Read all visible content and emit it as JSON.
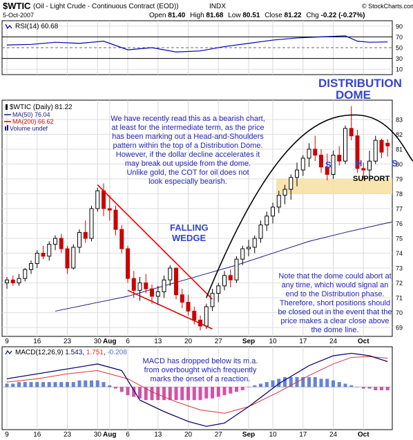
{
  "header": {
    "symbol": "$WTIC",
    "description": "(Oil - Light Crude - Continuous Contract (EOD))",
    "exchange": "INDX",
    "date": "5-Oct-2007",
    "open_label": "Open",
    "open": "81.40",
    "high_label": "High",
    "high": "81.68",
    "low_label": "Low",
    "low": "80.51",
    "close_label": "Close",
    "close": "81.22",
    "chg_label": "Chg",
    "chg": "-0.22 (-0.27%)",
    "brand": "© StockCharts.com"
  },
  "rsi_panel": {
    "legend": "RSI(14) 60.68",
    "ticks": [
      90,
      70,
      50,
      30,
      10
    ],
    "ref_levels": [
      70,
      30
    ],
    "mid_level": 50,
    "ylim": [
      0,
      100
    ],
    "color": "#0000aa"
  },
  "price_panel": {
    "legend_title": "$WTIC (Daily) 81.22",
    "legend_ma50": "MA(50) 76.04",
    "legend_ma200": "MA(200) 66.62",
    "legend_volume": "Volume undef",
    "ticks": [
      83,
      82,
      81,
      80,
      79,
      78,
      77,
      76,
      75,
      74,
      73,
      72,
      71,
      70,
      69
    ],
    "ylim": [
      68.4,
      84.3
    ],
    "up_color": "#ffffff",
    "down_color": "#cc0000",
    "ma50_color": "#1a1a80",
    "ma200_color": "#cc0000"
  },
  "macd_panel": {
    "legend_name": "MACD(12,26,9)",
    "legend_macd": "1.543",
    "legend_signal": "1.751",
    "legend_hist": "-0.208",
    "ylim": [
      -2.6,
      2.45
    ],
    "macd_color": "#0a0a6e",
    "signal_color": "#e03030",
    "hist_up_color": "#4a6fd0",
    "hist_down_color": "#cc3399"
  },
  "x_axis": {
    "ticks": [
      {
        "i": 0,
        "label": "9",
        "bold": false
      },
      {
        "i": 5,
        "label": "16",
        "bold": false
      },
      {
        "i": 10,
        "label": "23",
        "bold": false
      },
      {
        "i": 15,
        "label": "30",
        "bold": false
      },
      {
        "i": 17,
        "label": "Aug",
        "bold": true
      },
      {
        "i": 20,
        "label": "6",
        "bold": false
      },
      {
        "i": 25,
        "label": "13",
        "bold": false
      },
      {
        "i": 30,
        "label": "20",
        "bold": false
      },
      {
        "i": 35,
        "label": "27",
        "bold": false
      },
      {
        "i": 40,
        "label": "Sep",
        "bold": true
      },
      {
        "i": 44,
        "label": "10",
        "bold": false
      },
      {
        "i": 49,
        "label": "17",
        "bold": false
      },
      {
        "i": 54,
        "label": "24",
        "bold": false
      },
      {
        "i": 59,
        "label": "Oct",
        "bold": true
      }
    ]
  },
  "annotations": {
    "distribution_line1": "DISTRIBUTION",
    "distribution_line2": "DOME",
    "bearish_text": [
      "We have recently read this as a bearish chart,",
      "at least for the intermediate term, as the price",
      "has been marking out a Head-and-Shoulders",
      "pattern within the top of a Distribution Dome.",
      "However, if the dollar decline accelerates it",
      "may break out upside from the dome.",
      "Unlike gold, the COT for oil does not",
      "look especially bearish."
    ],
    "falling_line1": "FALLING",
    "falling_line2": "WEDGE",
    "s_left": "S",
    "h": "H",
    "s_right": "S",
    "support": "SUPPORT",
    "dome_note": [
      "Note that the dome could abort at",
      "any time, which would signal an",
      "end to the Distribution phase.",
      "Therefore, short positions should",
      "be closed out in the event that the",
      "price makes a clear close above",
      "the dome line."
    ],
    "macd_note": [
      "MACD has dropped below its m.a.",
      "from overbought which frequently",
      "marks the onset of a reaction."
    ],
    "text_color": "#2222bb",
    "title_color": "#3344cc",
    "support_zone_color": "#f7dfa0",
    "wedge_color": "#dd0000",
    "dome_color": "#000000"
  },
  "chart_data": [
    {
      "type": "line",
      "name_in_legend": "RSI(14)",
      "x_index": [
        0,
        4,
        8,
        12,
        16,
        20,
        24,
        28,
        32,
        36,
        40,
        44,
        48,
        52,
        56,
        58,
        60,
        63
      ],
      "values": [
        55,
        56,
        60,
        58,
        62,
        46,
        50,
        42,
        44,
        52,
        58,
        64,
        68,
        70,
        72,
        62,
        60,
        60.68
      ],
      "ylim": [
        0,
        100
      ],
      "ticks": [
        90,
        70,
        50,
        30,
        10
      ]
    },
    {
      "type": "candlestick",
      "series_legend": "$WTIC (Daily) 81.22",
      "ohlc": [
        [
          72.0,
          72.4,
          71.6,
          72.2
        ],
        [
          72.2,
          72.5,
          71.8,
          72.0
        ],
        [
          72.0,
          72.6,
          71.8,
          72.3
        ],
        [
          72.3,
          73.0,
          72.1,
          72.9
        ],
        [
          72.9,
          73.5,
          72.6,
          73.3
        ],
        [
          73.3,
          74.2,
          73.0,
          74.0
        ],
        [
          74.0,
          74.5,
          73.6,
          73.8
        ],
        [
          73.8,
          74.8,
          73.5,
          74.6
        ],
        [
          74.6,
          75.2,
          74.2,
          75.0
        ],
        [
          75.0,
          75.3,
          74.0,
          74.3
        ],
        [
          74.3,
          74.5,
          72.6,
          73.0
        ],
        [
          73.0,
          74.6,
          72.9,
          74.4
        ],
        [
          74.4,
          75.6,
          74.0,
          75.4
        ],
        [
          75.4,
          76.2,
          74.7,
          75.0
        ],
        [
          75.0,
          77.2,
          74.8,
          77.0
        ],
        [
          77.0,
          78.4,
          76.8,
          78.2
        ],
        [
          78.2,
          78.7,
          76.5,
          77.0
        ],
        [
          77.0,
          77.9,
          76.2,
          76.9
        ],
        [
          76.9,
          77.2,
          75.2,
          75.6
        ],
        [
          75.6,
          75.9,
          74.0,
          74.3
        ],
        [
          74.3,
          74.5,
          72.0,
          72.3
        ],
        [
          72.3,
          72.8,
          71.0,
          71.5
        ],
        [
          71.5,
          72.4,
          70.8,
          72.0
        ],
        [
          72.0,
          72.6,
          71.3,
          71.6
        ],
        [
          71.6,
          71.9,
          70.6,
          71.1
        ],
        [
          71.1,
          71.8,
          70.5,
          71.4
        ],
        [
          71.4,
          72.5,
          71.0,
          72.2
        ],
        [
          72.2,
          73.2,
          71.8,
          73.0
        ],
        [
          73.0,
          73.0,
          70.9,
          71.2
        ],
        [
          71.2,
          71.6,
          70.3,
          70.7
        ],
        [
          70.7,
          71.2,
          69.8,
          70.1
        ],
        [
          70.1,
          70.4,
          69.2,
          69.5
        ],
        [
          69.5,
          69.8,
          68.8,
          69.1
        ],
        [
          69.1,
          70.6,
          68.9,
          70.4
        ],
        [
          70.4,
          71.6,
          70.1,
          71.3
        ],
        [
          71.3,
          72.0,
          70.7,
          71.8
        ],
        [
          71.8,
          72.8,
          71.5,
          72.5
        ],
        [
          72.5,
          72.9,
          71.7,
          72.2
        ],
        [
          72.2,
          73.8,
          72.0,
          73.6
        ],
        [
          73.6,
          74.5,
          73.2,
          74.3
        ],
        [
          74.3,
          74.9,
          73.8,
          74.4
        ],
        [
          74.4,
          75.2,
          74.0,
          75.0
        ],
        [
          75.0,
          76.2,
          74.7,
          75.9
        ],
        [
          75.9,
          76.8,
          75.5,
          76.5
        ],
        [
          76.5,
          77.4,
          76.0,
          77.1
        ],
        [
          77.1,
          78.2,
          76.7,
          77.9
        ],
        [
          77.9,
          78.6,
          77.3,
          78.3
        ],
        [
          78.3,
          79.3,
          77.6,
          79.1
        ],
        [
          79.1,
          80.1,
          78.5,
          79.6
        ],
        [
          79.6,
          80.6,
          79.2,
          80.4
        ],
        [
          80.4,
          81.4,
          79.8,
          81.0
        ],
        [
          81.0,
          81.9,
          80.2,
          80.6
        ],
        [
          80.6,
          81.0,
          79.4,
          79.8
        ],
        [
          79.8,
          80.7,
          78.9,
          79.3
        ],
        [
          79.3,
          80.9,
          79.0,
          80.6
        ],
        [
          80.6,
          81.2,
          79.9,
          80.2
        ],
        [
          80.2,
          82.6,
          80.0,
          82.4
        ],
        [
          82.4,
          83.9,
          81.6,
          81.9
        ],
        [
          81.9,
          82.3,
          79.4,
          79.7
        ],
        [
          79.7,
          80.1,
          79.0,
          79.6
        ],
        [
          79.6,
          80.9,
          78.9,
          80.2
        ],
        [
          80.2,
          81.9,
          80.0,
          81.6
        ],
        [
          81.6,
          81.7,
          80.4,
          80.8
        ],
        [
          81.4,
          81.68,
          80.51,
          81.22
        ]
      ]
    },
    {
      "type": "line",
      "name_in_legend": "MA(50)",
      "x_index": [
        8,
        14,
        20,
        26,
        32,
        38,
        44,
        50,
        56,
        63
      ],
      "values": [
        70.1,
        70.6,
        71.1,
        71.8,
        72.5,
        73.2,
        74.0,
        74.8,
        75.4,
        76.04
      ]
    },
    {
      "type": "line",
      "name_in_legend": "MACD(12,26,9)",
      "x_index": [
        0,
        5,
        10,
        15,
        19,
        22,
        26,
        30,
        33,
        36,
        40,
        45,
        50,
        54,
        57,
        60,
        63
      ],
      "values": [
        0.5,
        0.8,
        1.1,
        1.4,
        1.0,
        -0.8,
        -1.5,
        -2.1,
        -2.4,
        -2.2,
        -1.2,
        0.2,
        1.3,
        1.9,
        2.05,
        1.9,
        1.543
      ]
    },
    {
      "type": "line",
      "name_in_legend": "signal",
      "x_index": [
        0,
        5,
        10,
        15,
        20,
        24,
        28,
        32,
        36,
        40,
        45,
        50,
        54,
        57,
        60,
        63
      ],
      "values": [
        0.3,
        0.5,
        0.8,
        1.0,
        0.5,
        -0.3,
        -0.9,
        -1.4,
        -1.6,
        -1.2,
        -0.3,
        0.7,
        1.4,
        1.8,
        1.85,
        1.751
      ]
    },
    {
      "type": "bar",
      "name_in_legend": "histogram",
      "values": [
        0.2,
        0.2,
        0.3,
        0.3,
        0.3,
        0.3,
        0.3,
        0.3,
        0.3,
        0.3,
        0.3,
        0.3,
        0.4,
        0.4,
        0.4,
        0.4,
        0.3,
        0.1,
        -0.1,
        -0.3,
        -0.5,
        -0.6,
        -0.7,
        -0.8,
        -0.8,
        -0.8,
        -0.8,
        -0.8,
        -0.8,
        -0.8,
        -0.8,
        -0.8,
        -0.8,
        -0.7,
        -0.7,
        -0.6,
        -0.5,
        -0.4,
        -0.3,
        -0.2,
        0.0,
        0.1,
        0.2,
        0.3,
        0.4,
        0.5,
        0.6,
        0.6,
        0.6,
        0.6,
        0.6,
        0.6,
        0.5,
        0.5,
        0.4,
        0.3,
        0.2,
        0.1,
        0.0,
        -0.1,
        -0.1,
        -0.2,
        -0.2,
        -0.2
      ]
    }
  ]
}
